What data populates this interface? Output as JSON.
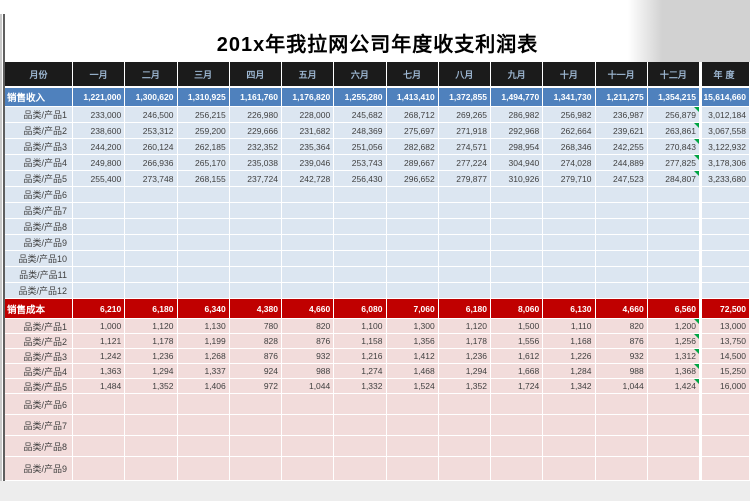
{
  "title": "201x年我拉网公司年度收支利润表",
  "colors": {
    "header_bg": "#1b1b1b",
    "header_text": "#9db7d2",
    "revenue_total_bg": "#4f81bd",
    "revenue_row_bg": "#dce6f1",
    "cost_total_bg": "#c00000",
    "cost_row_bg": "#f2dcdb",
    "flag_green": "#00a443",
    "grid_line": "#ffffff",
    "number_text": "#3f3f3f",
    "title_color": "#000000",
    "canvas_top_right": "#d2d2d2",
    "canvas_bottom": "#ededed",
    "edge_line_dark": "#5f5f5f",
    "edge_line_light": "#c9c9c9"
  },
  "table": {
    "columns": [
      "月份",
      "一月",
      "二月",
      "三月",
      "四月",
      "五月",
      "六月",
      "七月",
      "八月",
      "九月",
      "十月",
      "十一月",
      "十二月",
      "年度"
    ],
    "revenue": {
      "total": {
        "label": "销售收入",
        "values": [
          "1,221,000",
          "1,300,620",
          "1,310,925",
          "1,161,760",
          "1,176,820",
          "1,255,280",
          "1,413,410",
          "1,372,855",
          "1,494,770",
          "1,341,730",
          "1,211,275",
          "1,354,215",
          "15,614,660"
        ]
      },
      "items": [
        {
          "label": "品类/产品1",
          "values": [
            "233,000",
            "246,500",
            "256,215",
            "226,980",
            "228,000",
            "245,682",
            "268,712",
            "269,265",
            "286,982",
            "256,982",
            "236,987",
            "256,879"
          ],
          "annual": "3,012,184",
          "flag": true
        },
        {
          "label": "品类/产品2",
          "values": [
            "238,600",
            "253,312",
            "259,200",
            "229,666",
            "231,682",
            "248,369",
            "275,697",
            "271,918",
            "292,968",
            "262,664",
            "239,621",
            "263,861"
          ],
          "annual": "3,067,558",
          "flag": true
        },
        {
          "label": "品类/产品3",
          "values": [
            "244,200",
            "260,124",
            "262,185",
            "232,352",
            "235,364",
            "251,056",
            "282,682",
            "274,571",
            "298,954",
            "268,346",
            "242,255",
            "270,843"
          ],
          "annual": "3,122,932",
          "flag": true
        },
        {
          "label": "品类/产品4",
          "values": [
            "249,800",
            "266,936",
            "265,170",
            "235,038",
            "239,046",
            "253,743",
            "289,667",
            "277,224",
            "304,940",
            "274,028",
            "244,889",
            "277,825"
          ],
          "annual": "3,178,306",
          "flag": true
        },
        {
          "label": "品类/产品5",
          "values": [
            "255,400",
            "273,748",
            "268,155",
            "237,724",
            "242,728",
            "256,430",
            "296,652",
            "279,877",
            "310,926",
            "279,710",
            "247,523",
            "284,807"
          ],
          "annual": "3,233,680",
          "flag": true
        },
        {
          "label": "品类/产品6",
          "values": [
            "",
            "",
            "",
            "",
            "",
            "",
            "",
            "",
            "",
            "",
            "",
            ""
          ],
          "annual": "",
          "flag": false
        },
        {
          "label": "品类/产品7",
          "values": [
            "",
            "",
            "",
            "",
            "",
            "",
            "",
            "",
            "",
            "",
            "",
            ""
          ],
          "annual": "",
          "flag": false
        },
        {
          "label": "品类/产品8",
          "values": [
            "",
            "",
            "",
            "",
            "",
            "",
            "",
            "",
            "",
            "",
            "",
            ""
          ],
          "annual": "",
          "flag": false
        },
        {
          "label": "品类/产品9",
          "values": [
            "",
            "",
            "",
            "",
            "",
            "",
            "",
            "",
            "",
            "",
            "",
            ""
          ],
          "annual": "",
          "flag": false
        },
        {
          "label": "品类/产品10",
          "values": [
            "",
            "",
            "",
            "",
            "",
            "",
            "",
            "",
            "",
            "",
            "",
            ""
          ],
          "annual": "",
          "flag": false
        },
        {
          "label": "品类/产品11",
          "values": [
            "",
            "",
            "",
            "",
            "",
            "",
            "",
            "",
            "",
            "",
            "",
            ""
          ],
          "annual": "",
          "flag": false
        },
        {
          "label": "品类/产品12",
          "values": [
            "",
            "",
            "",
            "",
            "",
            "",
            "",
            "",
            "",
            "",
            "",
            ""
          ],
          "annual": "",
          "flag": false
        }
      ]
    },
    "cost": {
      "total": {
        "label": "销售成本",
        "values": [
          "6,210",
          "6,180",
          "6,340",
          "4,380",
          "4,660",
          "6,080",
          "7,060",
          "6,180",
          "8,060",
          "6,130",
          "4,660",
          "6,560",
          "72,500"
        ]
      },
      "items": [
        {
          "label": "品类/产品1",
          "values": [
            "1,000",
            "1,120",
            "1,130",
            "780",
            "820",
            "1,100",
            "1,300",
            "1,120",
            "1,500",
            "1,110",
            "820",
            "1,200"
          ],
          "annual": "13,000",
          "flag": true
        },
        {
          "label": "品类/产品2",
          "values": [
            "1,121",
            "1,178",
            "1,199",
            "828",
            "876",
            "1,158",
            "1,356",
            "1,178",
            "1,556",
            "1,168",
            "876",
            "1,256"
          ],
          "annual": "13,750",
          "flag": true
        },
        {
          "label": "品类/产品3",
          "values": [
            "1,242",
            "1,236",
            "1,268",
            "876",
            "932",
            "1,216",
            "1,412",
            "1,236",
            "1,612",
            "1,226",
            "932",
            "1,312"
          ],
          "annual": "14,500",
          "flag": true
        },
        {
          "label": "品类/产品4",
          "values": [
            "1,363",
            "1,294",
            "1,337",
            "924",
            "988",
            "1,274",
            "1,468",
            "1,294",
            "1,668",
            "1,284",
            "988",
            "1,368"
          ],
          "annual": "15,250",
          "flag": true
        },
        {
          "label": "品类/产品5",
          "values": [
            "1,484",
            "1,352",
            "1,406",
            "972",
            "1,044",
            "1,332",
            "1,524",
            "1,352",
            "1,724",
            "1,342",
            "1,044",
            "1,424"
          ],
          "annual": "16,000",
          "flag": true
        },
        {
          "label": "品类/产品6",
          "values": [
            "",
            "",
            "",
            "",
            "",
            "",
            "",
            "",
            "",
            "",
            "",
            ""
          ],
          "annual": "",
          "flag": false
        },
        {
          "label": "品类/产品7",
          "values": [
            "",
            "",
            "",
            "",
            "",
            "",
            "",
            "",
            "",
            "",
            "",
            ""
          ],
          "annual": "",
          "flag": false
        },
        {
          "label": "品类/产品8",
          "values": [
            "",
            "",
            "",
            "",
            "",
            "",
            "",
            "",
            "",
            "",
            "",
            ""
          ],
          "annual": "",
          "flag": false
        },
        {
          "label": "品类/产品9",
          "values": [
            "",
            "",
            "",
            "",
            "",
            "",
            "",
            "",
            "",
            "",
            "",
            ""
          ],
          "annual": "",
          "flag": false
        }
      ]
    }
  }
}
